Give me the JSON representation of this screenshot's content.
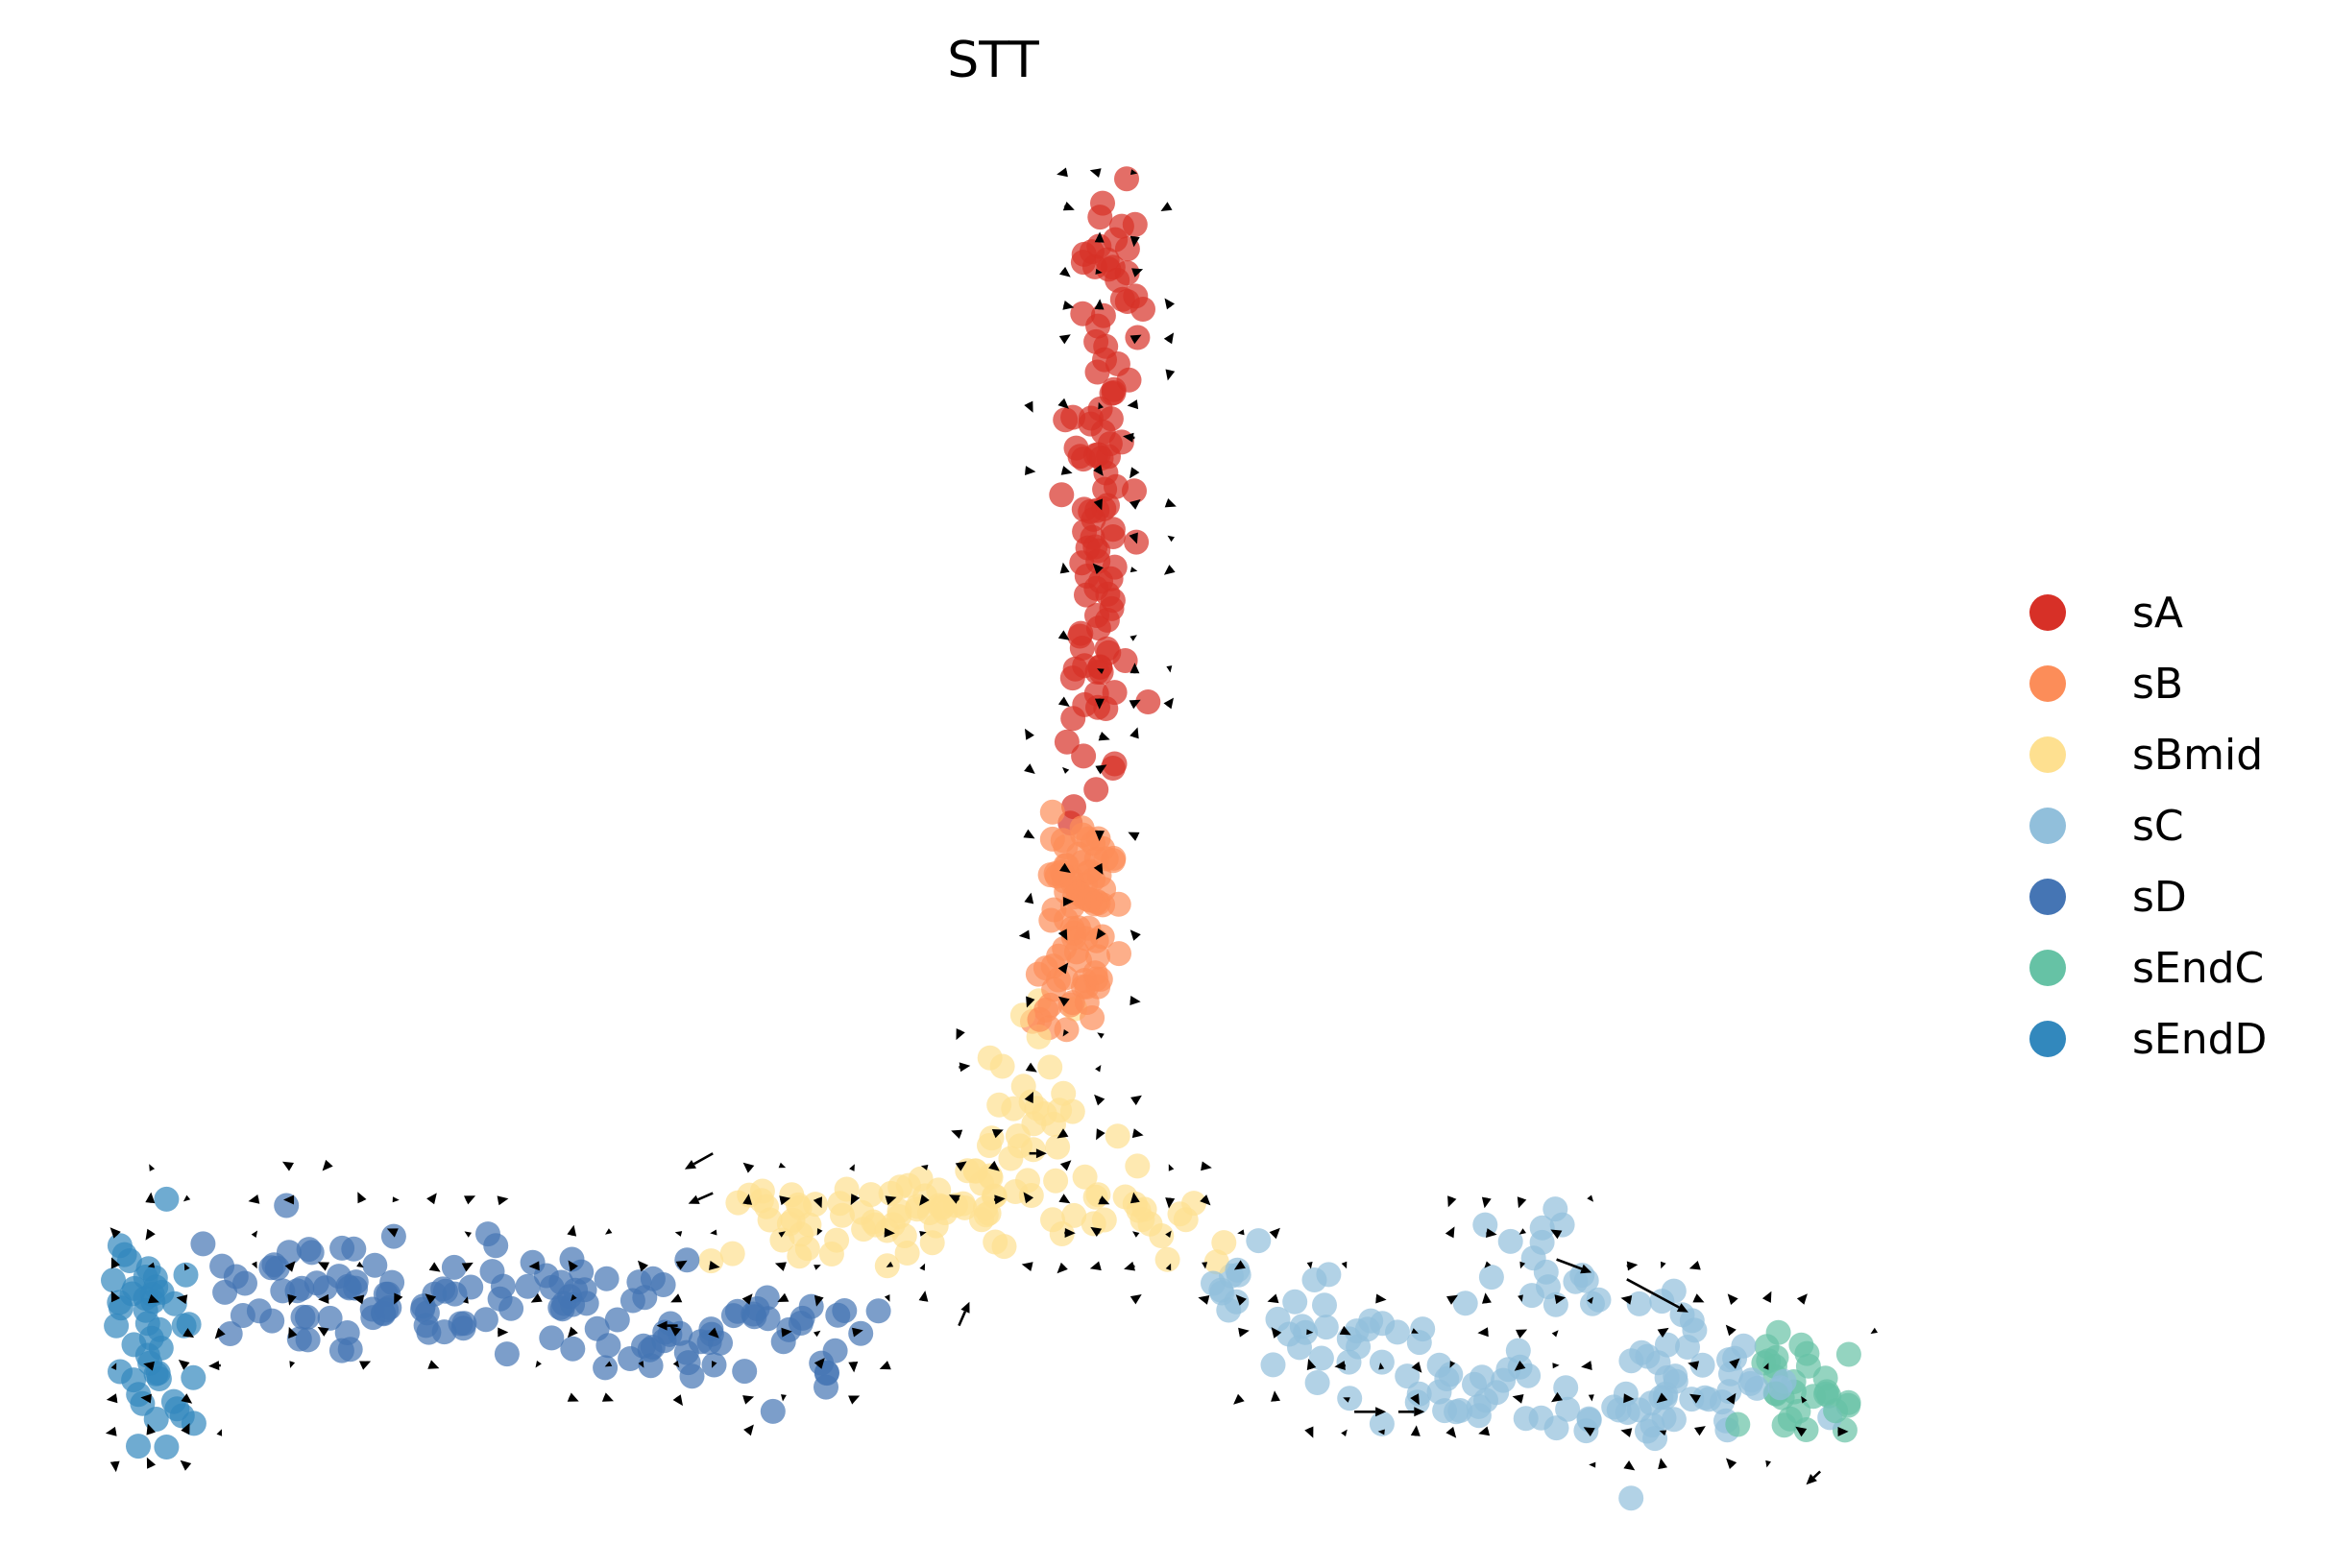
{
  "chart_data": {
    "type": "scatter",
    "title": "STT",
    "xlabel": "",
    "ylabel": "",
    "axes_visible": false,
    "grid": false,
    "xlim": [
      0,
      100
    ],
    "ylim": [
      0,
      100
    ],
    "legend_position": "right",
    "legend": [
      {
        "name": "sA",
        "color": "#d73027"
      },
      {
        "name": "sB",
        "color": "#fc8d59"
      },
      {
        "name": "sBmid",
        "color": "#fee090"
      },
      {
        "name": "sC",
        "color": "#91bfdb"
      },
      {
        "name": "sD",
        "color": "#4575b4"
      },
      {
        "name": "sEndC",
        "color": "#66c2a5"
      },
      {
        "name": "sEndD",
        "color": "#3288bd"
      }
    ],
    "point_alpha": 0.7,
    "clusters": [
      {
        "name": "sA",
        "path": [
          [
            56.6,
            98.5
          ],
          [
            56.4,
            86.5
          ],
          [
            56.0,
            74.5
          ],
          [
            55.6,
            62.5
          ],
          [
            55.2,
            50.5
          ]
        ],
        "count": 110,
        "spread_x": 1.0,
        "spread_y": 0.6
      },
      {
        "name": "sB",
        "path": [
          [
            55.0,
            50.5
          ],
          [
            54.6,
            42.5
          ],
          [
            54.2,
            35.0
          ]
        ],
        "count": 85,
        "spread_x": 1.1,
        "spread_y": 0.6
      },
      {
        "name": "sBmid",
        "path": [
          [
            53.8,
            35.0
          ],
          [
            52.6,
            27.0
          ],
          [
            48.0,
            22.0
          ],
          [
            42.0,
            21.0
          ],
          [
            36.0,
            20.0
          ],
          [
            56.0,
            24.0
          ],
          [
            60.0,
            20.0
          ],
          [
            64.0,
            19.0
          ]
        ],
        "count": 120,
        "spread_x": 1.8,
        "spread_y": 1.6
      },
      {
        "name": "sC",
        "path": [
          [
            63.0,
            17.0
          ],
          [
            69.0,
            12.0
          ],
          [
            74.0,
            9.0
          ],
          [
            80.0,
            8.0
          ],
          [
            86.0,
            7.0
          ],
          [
            92.0,
            8.0
          ],
          [
            78.0,
            19.0
          ]
        ],
        "count": 130,
        "spread_x": 2.2,
        "spread_y": 2.0
      },
      {
        "name": "sD",
        "path": [
          [
            8.0,
            16.0
          ],
          [
            14.0,
            15.0
          ],
          [
            20.0,
            15.5
          ],
          [
            26.0,
            15.0
          ],
          [
            31.0,
            13.0
          ],
          [
            37.0,
            12.0
          ],
          [
            41.0,
            13.0
          ]
        ],
        "count": 140,
        "spread_x": 2.0,
        "spread_y": 2.2
      },
      {
        "name": "sEndC",
        "path": [
          [
            93.5,
            9.5
          ],
          [
            96.0,
            9.0
          ],
          [
            98.0,
            7.5
          ]
        ],
        "count": 30,
        "spread_x": 1.1,
        "spread_y": 2.0
      },
      {
        "name": "sEndD",
        "path": [
          [
            1.5,
            17.0
          ],
          [
            2.2,
            13.0
          ],
          [
            2.8,
            9.0
          ],
          [
            3.0,
            5.0
          ]
        ],
        "count": 45,
        "spread_x": 1.0,
        "spread_y": 1.6
      }
    ],
    "velocity_grid": {
      "spacing_x": 2.0,
      "spacing_y": 2.5,
      "long_arrows": [
        {
          "x": 86.0,
          "y": 16.5,
          "dx": 3.5,
          "dy": -2.5
        },
        {
          "x": 82.0,
          "y": 18.0,
          "dx": 2.0,
          "dy": -1.0
        },
        {
          "x": 34.0,
          "y": 26.0,
          "dx": -1.6,
          "dy": -1.2
        },
        {
          "x": 34.0,
          "y": 23.0,
          "dx": -1.4,
          "dy": -0.8
        },
        {
          "x": 70.5,
          "y": 6.5,
          "dx": 1.8,
          "dy": 0.0
        },
        {
          "x": 73.0,
          "y": 6.5,
          "dx": 1.5,
          "dy": 0.0
        },
        {
          "x": 97.0,
          "y": 2.0,
          "dx": -0.8,
          "dy": -1.0
        },
        {
          "x": 48.0,
          "y": 13.0,
          "dx": 0.6,
          "dy": 1.8
        },
        {
          "x": 32.0,
          "y": 13.0,
          "dx": -1.2,
          "dy": 0.0
        },
        {
          "x": 52.0,
          "y": 26.0,
          "dx": 1.0,
          "dy": 0.0
        }
      ]
    }
  }
}
